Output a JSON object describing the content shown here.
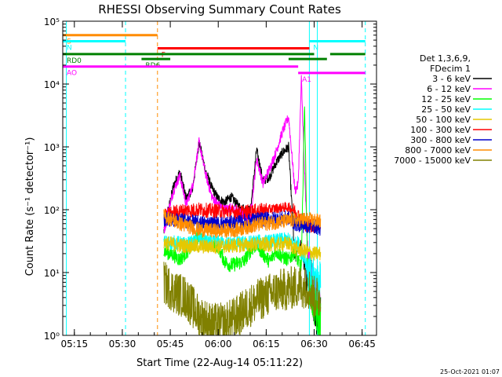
{
  "chart_data": {
    "type": "line",
    "title": "RHESSI Observing Summary Count Rates",
    "xlabel": "Start Time (22-Aug-14 05:11:22)",
    "ylabel": "Count Rate (s⁻¹ detector⁻¹)",
    "y_scale": "log",
    "ylim": [
      1,
      100000
    ],
    "xlim": [
      "05:11:22",
      "06:49:30"
    ],
    "x_ticks": [
      "05:15",
      "05:30",
      "05:45",
      "06:00",
      "06:15",
      "06:30",
      "06:45"
    ],
    "y_ticks": [
      {
        "value": 1,
        "label": "10⁰"
      },
      {
        "value": 10,
        "label": "10¹"
      },
      {
        "value": 100,
        "label": "10²"
      },
      {
        "value": 1000,
        "label": "10³"
      },
      {
        "value": 10000,
        "label": "10⁴"
      },
      {
        "value": 100000,
        "label": "10⁵"
      }
    ],
    "legend_position": "right",
    "legend_header": [
      "Det 1,3,6,9,",
      "FDecim 1"
    ],
    "series": [
      {
        "name": "3 - 6 keV",
        "color": "#000000",
        "x": [
          "05:43",
          "05:46",
          "05:48",
          "05:50",
          "05:52",
          "05:54",
          "05:56",
          "05:58",
          "06:00",
          "06:02",
          "06:04",
          "06:06",
          "06:08",
          "06:10",
          "06:12",
          "06:14",
          "06:16",
          "06:18",
          "06:20",
          "06:22",
          "06:24",
          "06:25",
          "06:26",
          "06:27",
          "06:28",
          "06:29",
          "06:30",
          "06:31",
          "06:32"
        ],
        "y": [
          45,
          240,
          400,
          150,
          220,
          1200,
          420,
          220,
          150,
          130,
          160,
          120,
          95,
          90,
          900,
          290,
          330,
          550,
          800,
          1000,
          15,
          30,
          25,
          12,
          8,
          10,
          3,
          2,
          2
        ]
      },
      {
        "name": "6 - 12 keV",
        "color": "#ff00ff",
        "x": [
          "05:43",
          "05:46",
          "05:48",
          "05:50",
          "05:52",
          "05:54",
          "05:56",
          "05:58",
          "06:00",
          "06:02",
          "06:04",
          "06:06",
          "06:08",
          "06:10",
          "06:12",
          "06:14",
          "06:16",
          "06:18",
          "06:20",
          "06:22",
          "06:24",
          "06:25",
          "06:26",
          "06:27",
          "06:28",
          "06:29",
          "06:30",
          "06:31",
          "06:32"
        ],
        "y": [
          50,
          200,
          350,
          120,
          240,
          1200,
          380,
          160,
          120,
          100,
          110,
          90,
          80,
          70,
          650,
          260,
          450,
          800,
          1700,
          3000,
          200,
          250,
          12000,
          400,
          20,
          15,
          4,
          3,
          3
        ]
      },
      {
        "name": "12 - 25 keV",
        "color": "#00ff00",
        "x": [
          "05:43",
          "05:46",
          "05:48",
          "05:50",
          "05:52",
          "05:54",
          "05:56",
          "05:58",
          "06:00",
          "06:02",
          "06:04",
          "06:06",
          "06:08",
          "06:10",
          "06:12",
          "06:14",
          "06:16",
          "06:18",
          "06:20",
          "06:22",
          "06:24",
          "06:25",
          "06:26",
          "06:27",
          "06:28",
          "06:29",
          "06:30",
          "06:31",
          "06:32"
        ],
        "y": [
          22,
          19,
          16,
          21,
          27,
          38,
          30,
          28,
          26,
          15,
          13,
          14,
          15,
          22,
          28,
          20,
          15,
          22,
          18,
          16,
          22,
          15,
          12,
          5000,
          8,
          5,
          3,
          2,
          2
        ]
      },
      {
        "name": "25 - 50 keV",
        "color": "#00ffff",
        "x": [
          "05:43",
          "05:46",
          "05:48",
          "05:50",
          "05:52",
          "05:54",
          "05:56",
          "05:58",
          "06:00",
          "06:02",
          "06:04",
          "06:06",
          "06:08",
          "06:10",
          "06:12",
          "06:14",
          "06:16",
          "06:18",
          "06:20",
          "06:22",
          "06:24",
          "06:25",
          "06:26",
          "06:27",
          "06:28",
          "06:29",
          "06:30",
          "06:31",
          "06:32"
        ],
        "y": [
          30,
          30,
          29,
          28,
          30,
          33,
          31,
          30,
          30,
          29,
          29,
          29,
          29,
          30,
          31,
          31,
          31,
          32,
          33,
          33,
          28,
          30,
          20,
          18,
          10,
          8,
          8,
          7,
          7
        ]
      },
      {
        "name": "50 - 100 keV",
        "color": "#e6c800",
        "x": [
          "05:43",
          "05:48",
          "05:54",
          "06:00",
          "06:06",
          "06:12",
          "06:18",
          "06:22",
          "06:24",
          "06:27",
          "06:30",
          "06:32"
        ],
        "y": [
          30,
          27,
          26,
          26,
          27,
          28,
          28,
          29,
          24,
          22,
          20,
          20
        ]
      },
      {
        "name": "100 - 300 keV",
        "color": "#ff0000",
        "x": [
          "05:43",
          "05:48",
          "05:54",
          "06:00",
          "06:06",
          "06:12",
          "06:18",
          "06:22",
          "06:24",
          "06:27",
          "06:30",
          "06:32"
        ],
        "y": [
          80,
          95,
          100,
          95,
          90,
          95,
          105,
          110,
          95,
          60,
          55,
          55
        ]
      },
      {
        "name": "300 - 800 keV",
        "color": "#0000cc",
        "x": [
          "05:43",
          "05:48",
          "05:54",
          "06:00",
          "06:06",
          "06:12",
          "06:18",
          "06:22",
          "06:24",
          "06:27",
          "06:30",
          "06:32"
        ],
        "y": [
          70,
          68,
          62,
          60,
          62,
          70,
          72,
          74,
          60,
          55,
          55,
          50
        ]
      },
      {
        "name": "800 - 7000 keV",
        "color": "#ff8c00",
        "x": [
          "05:43",
          "05:48",
          "05:54",
          "06:00",
          "06:06",
          "06:12",
          "06:18",
          "06:22",
          "06:24",
          "06:27",
          "06:30",
          "06:32"
        ],
        "y": [
          80,
          60,
          48,
          46,
          48,
          58,
          63,
          66,
          68,
          70,
          68,
          65
        ]
      },
      {
        "name": "7000 - 15000 keV",
        "color": "#808000",
        "x": [
          "05:43",
          "05:46",
          "05:50",
          "05:54",
          "05:58",
          "06:02",
          "06:06",
          "06:10",
          "06:14",
          "06:18",
          "06:22",
          "06:25",
          "06:28",
          "06:30",
          "06:32"
        ],
        "y": [
          7,
          5,
          4,
          2,
          1.5,
          1.5,
          2,
          3,
          4,
          5,
          5.5,
          6,
          6,
          4,
          4
        ]
      }
    ],
    "attenuator_bars": [
      {
        "label": "S",
        "color": "#ff8c00",
        "level": 60000,
        "start": "05:11:22",
        "end": "05:41:00"
      },
      {
        "label": "N",
        "color": "#00ffff",
        "level": 48000,
        "start": "05:11:22",
        "end": "05:31:00"
      },
      {
        "label": "N",
        "color": "#00ffff",
        "level": 48000,
        "start": "06:28:30",
        "end": "06:46:00"
      },
      {
        "label": "F",
        "color": "#ff0000",
        "level": 37000,
        "start": "05:41:00",
        "end": "06:28:30"
      },
      {
        "label": "RD0",
        "color": "#008000",
        "level": 30000,
        "start": "05:11:22",
        "end": "06:30:00"
      },
      {
        "label": "",
        "color": "#008000",
        "level": 30000,
        "start": "06:35:00",
        "end": "06:46:00"
      },
      {
        "label": "RD6",
        "color": "#008000",
        "level": 25000,
        "start": "05:36:00",
        "end": "05:45:00"
      },
      {
        "label": "",
        "color": "#008000",
        "level": 25000,
        "start": "06:22:00",
        "end": "06:34:00"
      },
      {
        "label": "AO",
        "color": "#ff00ff",
        "level": 19000,
        "start": "05:11:22",
        "end": "06:25:00"
      },
      {
        "label": "A1",
        "color": "#ff00ff",
        "level": 15000,
        "start": "06:25:00",
        "end": "06:46:00"
      }
    ],
    "vertical_markers": [
      {
        "time": "05:12:30",
        "color": "#00ffff",
        "style": "solid"
      },
      {
        "time": "05:31:00",
        "color": "#00ffff",
        "style": "dashed"
      },
      {
        "time": "05:41:00",
        "color": "#ff8c00",
        "style": "dashed"
      },
      {
        "time": "06:28:30",
        "color": "#00ffff",
        "style": "solid"
      },
      {
        "time": "06:31:00",
        "color": "#00ffff",
        "style": "solid"
      },
      {
        "time": "06:46:00",
        "color": "#00ffff",
        "style": "dashed"
      }
    ],
    "timestamp": "25-Oct-2021 01:07"
  }
}
